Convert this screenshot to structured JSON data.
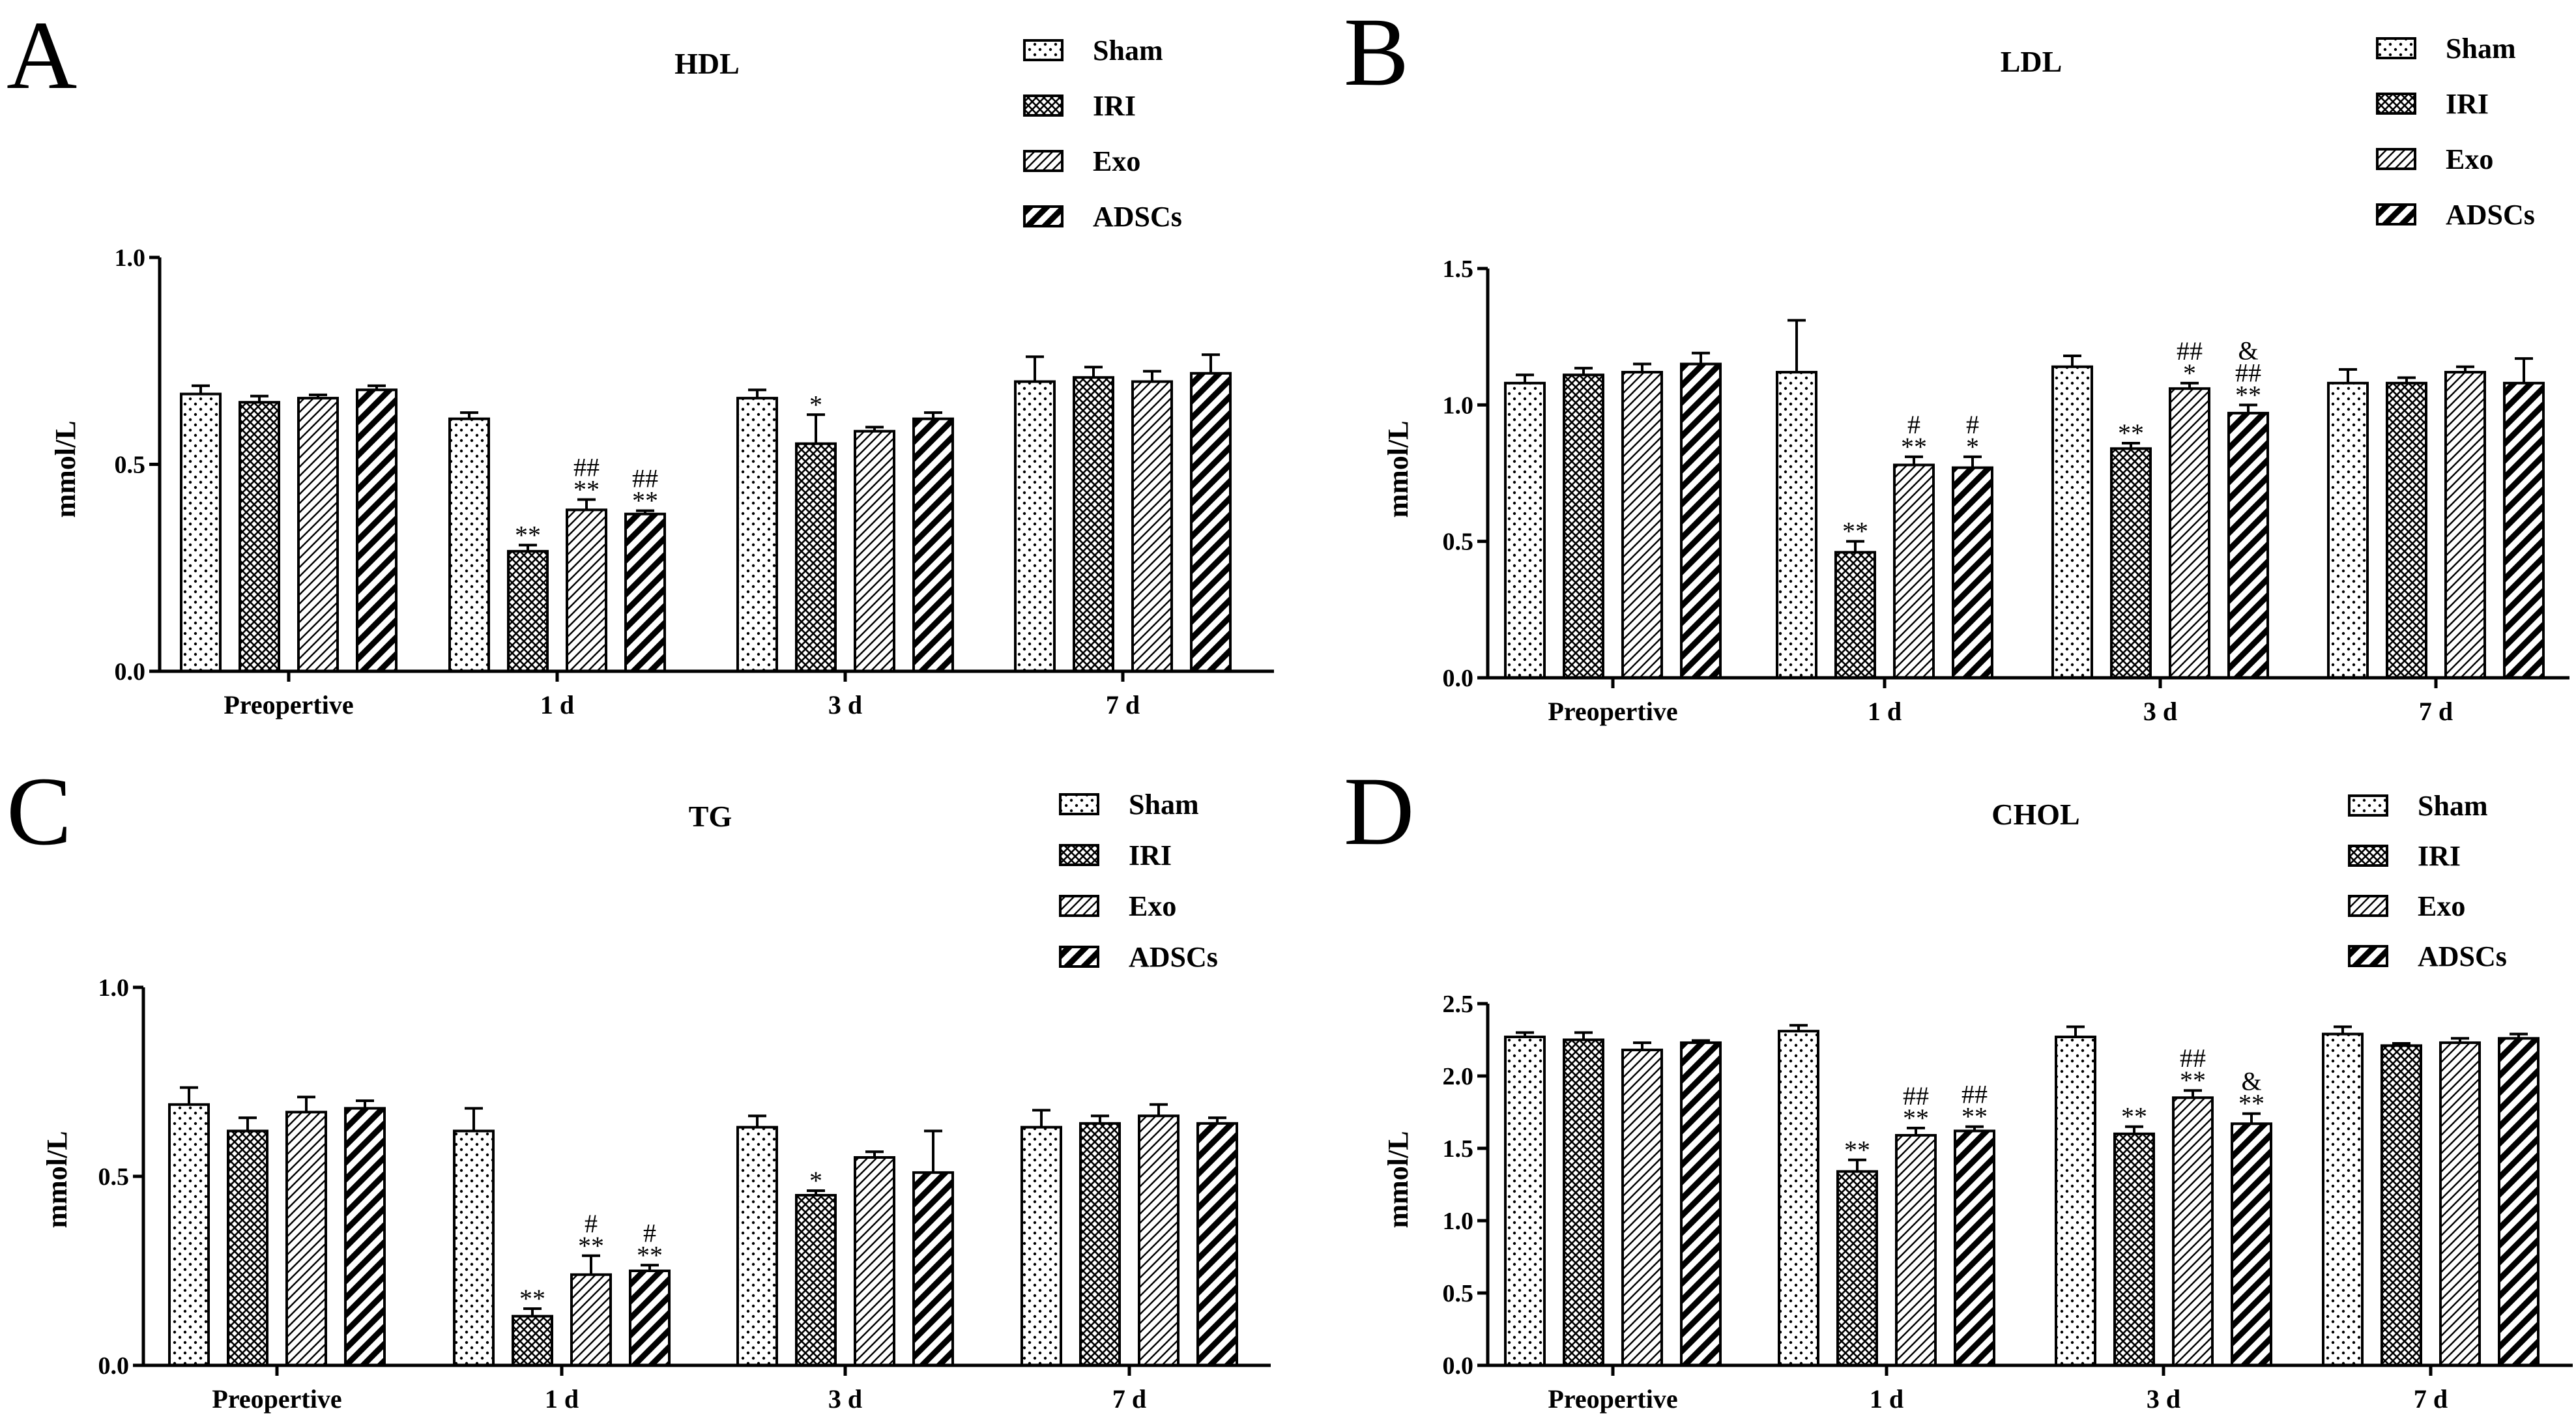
{
  "colors": {
    "ink": "#000000",
    "bar_fill": "#ffffff"
  },
  "legend": {
    "entries": [
      {
        "name": "Sham",
        "pattern": "dots"
      },
      {
        "name": "IRI",
        "pattern": "crosshatch"
      },
      {
        "name": "Exo",
        "pattern": "fine-diagonal"
      },
      {
        "name": "ADSCs",
        "pattern": "bold-diagonal"
      }
    ]
  },
  "chart_data": [
    {
      "letter": "A",
      "type": "bar",
      "title": "HDL",
      "ylabel": "mmol/L",
      "ylim": [
        0,
        1.0
      ],
      "yticks": [
        "0.0",
        "0.5",
        "1.0"
      ],
      "ytick_values": [
        0,
        0.5,
        1.0
      ],
      "categories": [
        "Preopertive",
        "1 d",
        "3 d",
        "7 d"
      ],
      "series": [
        {
          "name": "Sham",
          "values": [
            0.67,
            0.61,
            0.66,
            0.7
          ],
          "errors": [
            0.02,
            0.015,
            0.02,
            0.06
          ]
        },
        {
          "name": "IRI",
          "values": [
            0.65,
            0.29,
            0.55,
            0.71
          ],
          "errors": [
            0.015,
            0.015,
            0.07,
            0.025
          ]
        },
        {
          "name": "Exo",
          "values": [
            0.66,
            0.39,
            0.58,
            0.7
          ],
          "errors": [
            0.008,
            0.025,
            0.01,
            0.025
          ]
        },
        {
          "name": "ADSCs",
          "values": [
            0.68,
            0.38,
            0.61,
            0.72
          ],
          "errors": [
            0.01,
            0.008,
            0.015,
            0.045
          ]
        }
      ],
      "annotations": [
        {
          "category": 1,
          "series": 1,
          "lines": [
            "**"
          ]
        },
        {
          "category": 1,
          "series": 2,
          "lines": [
            "##",
            "**"
          ]
        },
        {
          "category": 1,
          "series": 3,
          "lines": [
            "##",
            "**"
          ]
        },
        {
          "category": 2,
          "series": 1,
          "lines": [
            "*"
          ]
        }
      ]
    },
    {
      "letter": "B",
      "type": "bar",
      "title": "LDL",
      "ylabel": "mmol/L",
      "ylim": [
        0,
        1.5
      ],
      "yticks": [
        "0.0",
        "0.5",
        "1.0",
        "1.5"
      ],
      "ytick_values": [
        0,
        0.5,
        1.0,
        1.5
      ],
      "categories": [
        "Preopertive",
        "1 d",
        "3 d",
        "7 d"
      ],
      "series": [
        {
          "name": "Sham",
          "values": [
            1.08,
            1.12,
            1.14,
            1.08
          ],
          "errors": [
            0.03,
            0.19,
            0.04,
            0.05
          ]
        },
        {
          "name": "IRI",
          "values": [
            1.11,
            0.46,
            0.84,
            1.08
          ],
          "errors": [
            0.025,
            0.04,
            0.02,
            0.02
          ]
        },
        {
          "name": "Exo",
          "values": [
            1.12,
            0.78,
            1.06,
            1.12
          ],
          "errors": [
            0.03,
            0.03,
            0.02,
            0.02
          ]
        },
        {
          "name": "ADSCs",
          "values": [
            1.15,
            0.77,
            0.97,
            1.08
          ],
          "errors": [
            0.04,
            0.04,
            0.03,
            0.09
          ]
        }
      ],
      "annotations": [
        {
          "category": 1,
          "series": 1,
          "lines": [
            "**"
          ]
        },
        {
          "category": 1,
          "series": 2,
          "lines": [
            "#",
            "**"
          ]
        },
        {
          "category": 1,
          "series": 3,
          "lines": [
            "#",
            "*"
          ]
        },
        {
          "category": 2,
          "series": 1,
          "lines": [
            "**"
          ]
        },
        {
          "category": 2,
          "series": 2,
          "lines": [
            "##",
            "*"
          ]
        },
        {
          "category": 2,
          "series": 3,
          "lines": [
            "&",
            "##",
            "**"
          ]
        }
      ]
    },
    {
      "letter": "C",
      "type": "bar",
      "title": "TG",
      "ylabel": "mmol/L",
      "ylim": [
        0,
        1.0
      ],
      "yticks": [
        "0.0",
        "0.5",
        "1.0"
      ],
      "ytick_values": [
        0,
        0.5,
        1.0
      ],
      "categories": [
        "Preopertive",
        "1 d",
        "3 d",
        "7 d"
      ],
      "series": [
        {
          "name": "Sham",
          "values": [
            0.69,
            0.62,
            0.63,
            0.63
          ],
          "errors": [
            0.045,
            0.06,
            0.03,
            0.045
          ]
        },
        {
          "name": "IRI",
          "values": [
            0.62,
            0.13,
            0.45,
            0.64
          ],
          "errors": [
            0.035,
            0.02,
            0.012,
            0.02
          ]
        },
        {
          "name": "Exo",
          "values": [
            0.67,
            0.24,
            0.55,
            0.66
          ],
          "errors": [
            0.04,
            0.05,
            0.015,
            0.03
          ]
        },
        {
          "name": "ADSCs",
          "values": [
            0.68,
            0.25,
            0.51,
            0.64
          ],
          "errors": [
            0.02,
            0.015,
            0.11,
            0.015
          ]
        }
      ],
      "annotations": [
        {
          "category": 1,
          "series": 1,
          "lines": [
            "**"
          ]
        },
        {
          "category": 1,
          "series": 2,
          "lines": [
            "#",
            "**"
          ]
        },
        {
          "category": 1,
          "series": 3,
          "lines": [
            "#",
            "**"
          ]
        },
        {
          "category": 2,
          "series": 1,
          "lines": [
            "*"
          ]
        }
      ]
    },
    {
      "letter": "D",
      "type": "bar",
      "title": "CHOL",
      "ylabel": "mmol/L",
      "ylim": [
        0,
        2.5
      ],
      "yticks": [
        "0.0",
        "0.5",
        "1.0",
        "1.5",
        "2.0",
        "2.5"
      ],
      "ytick_values": [
        0,
        0.5,
        1.0,
        1.5,
        2.0,
        2.5
      ],
      "categories": [
        "Preopertive",
        "1 d",
        "3 d",
        "7 d"
      ],
      "series": [
        {
          "name": "Sham",
          "values": [
            2.27,
            2.31,
            2.27,
            2.29
          ],
          "errors": [
            0.03,
            0.04,
            0.07,
            0.05
          ]
        },
        {
          "name": "IRI",
          "values": [
            2.25,
            1.34,
            1.6,
            2.21
          ],
          "errors": [
            0.05,
            0.08,
            0.05,
            0.015
          ]
        },
        {
          "name": "Exo",
          "values": [
            2.18,
            1.59,
            1.85,
            2.23
          ],
          "errors": [
            0.05,
            0.05,
            0.05,
            0.03
          ]
        },
        {
          "name": "ADSCs",
          "values": [
            2.23,
            1.62,
            1.67,
            2.26
          ],
          "errors": [
            0.015,
            0.03,
            0.07,
            0.03
          ]
        }
      ],
      "annotations": [
        {
          "category": 1,
          "series": 1,
          "lines": [
            "**"
          ]
        },
        {
          "category": 1,
          "series": 2,
          "lines": [
            "##",
            "**"
          ]
        },
        {
          "category": 1,
          "series": 3,
          "lines": [
            "##",
            "**"
          ]
        },
        {
          "category": 2,
          "series": 1,
          "lines": [
            "**"
          ]
        },
        {
          "category": 2,
          "series": 2,
          "lines": [
            "##",
            "**"
          ]
        },
        {
          "category": 2,
          "series": 3,
          "lines": [
            "&",
            "**"
          ]
        }
      ]
    }
  ]
}
